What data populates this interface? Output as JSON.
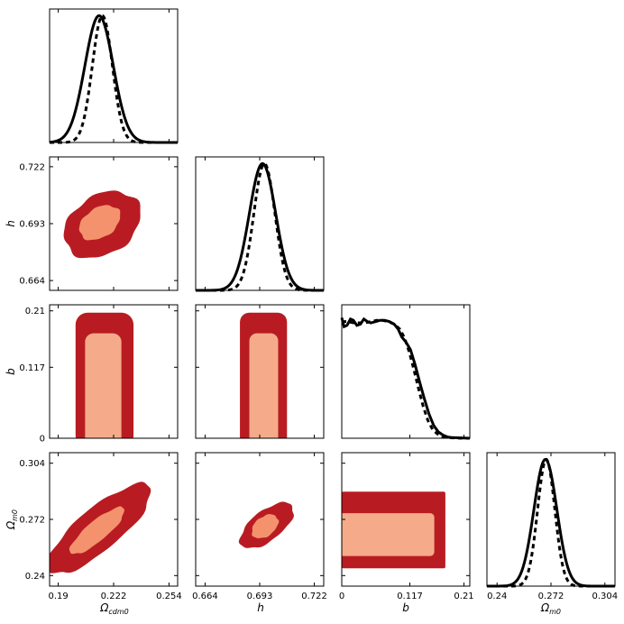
{
  "chart_data": {
    "type": "corner_plot",
    "parameters": [
      {
        "key": "Omega_cdm0",
        "label": "Ω",
        "sub": "cdm0",
        "range": [
          0.185,
          0.259
        ],
        "ticks": [
          "0.19",
          "0.222",
          "0.254"
        ],
        "tick_values": [
          0.19,
          0.222,
          0.254
        ]
      },
      {
        "key": "h",
        "label": "h",
        "sub": "",
        "range": [
          0.659,
          0.727
        ],
        "ticks": [
          "0.664",
          "0.693",
          "0.722"
        ],
        "tick_values": [
          0.664,
          0.693,
          0.722
        ]
      },
      {
        "key": "b",
        "label": "b",
        "sub": "",
        "range": [
          0.0,
          0.22
        ],
        "ticks": [
          "0",
          "0.117",
          "0.21"
        ],
        "tick_values": [
          0.0,
          0.117,
          0.21
        ]
      },
      {
        "key": "Omega_m0",
        "label": "Ω",
        "sub": "m0",
        "range": [
          0.234,
          0.31
        ],
        "ticks": [
          "0.24",
          "0.272",
          "0.304"
        ],
        "tick_values": [
          0.24,
          0.272,
          0.304
        ]
      }
    ],
    "colors": {
      "outer": "#b81c22",
      "inner_low": "#f5ab8a",
      "inner_high": "#f4926e",
      "line": "#000000"
    },
    "legend": "none",
    "grid": false,
    "marginals": [
      {
        "param": 0,
        "solid": {
          "type": "gauss",
          "mu": 0.2136,
          "sigma": 0.0082
        },
        "dashed": {
          "type": "gauss",
          "mu": 0.2155,
          "sigma": 0.0058
        }
      },
      {
        "param": 1,
        "solid": {
          "type": "gauss",
          "mu": 0.6945,
          "sigma": 0.007
        },
        "dashed": {
          "type": "gauss",
          "mu": 0.6955,
          "sigma": 0.0056
        }
      },
      {
        "param": 2,
        "solid": {
          "type": "points",
          "x": [
            0.0,
            0.004,
            0.009,
            0.015,
            0.02,
            0.026,
            0.032,
            0.038,
            0.044,
            0.05,
            0.058,
            0.066,
            0.074,
            0.082,
            0.09,
            0.097,
            0.103,
            0.11,
            0.118,
            0.126,
            0.134,
            0.142,
            0.15,
            0.158,
            0.166,
            0.174,
            0.182,
            0.19,
            0.2,
            0.21,
            0.22
          ],
          "y": [
            0.95,
            0.88,
            0.89,
            0.94,
            0.93,
            0.89,
            0.9,
            0.94,
            0.92,
            0.91,
            0.92,
            0.93,
            0.93,
            0.92,
            0.9,
            0.86,
            0.8,
            0.76,
            0.7,
            0.58,
            0.44,
            0.31,
            0.19,
            0.1,
            0.05,
            0.025,
            0.01,
            0.005,
            0.004,
            0.002,
            0.0
          ]
        },
        "dashed": {
          "type": "points",
          "x": [
            0.0,
            0.01,
            0.02,
            0.03,
            0.04,
            0.05,
            0.06,
            0.07,
            0.08,
            0.09,
            0.1,
            0.108,
            0.116,
            0.124,
            0.132,
            0.14,
            0.148,
            0.156,
            0.164,
            0.172,
            0.18,
            0.19,
            0.2,
            0.21,
            0.22
          ],
          "y": [
            0.92,
            0.92,
            0.91,
            0.91,
            0.91,
            0.92,
            0.93,
            0.93,
            0.92,
            0.9,
            0.86,
            0.79,
            0.68,
            0.54,
            0.39,
            0.25,
            0.14,
            0.07,
            0.035,
            0.015,
            0.007,
            0.003,
            0.001,
            0.0,
            0.0
          ]
        }
      },
      {
        "param": 3,
        "solid": {
          "type": "gauss",
          "mu": 0.2687,
          "sigma": 0.0068
        },
        "dashed": {
          "type": "gauss",
          "mu": 0.2692,
          "sigma": 0.0051
        }
      }
    ],
    "panels2d": [
      {
        "x": 0,
        "y": 1,
        "shape": "ellipse",
        "outer": {
          "cx": 0.2155,
          "cy": 0.6925,
          "rx": 0.024,
          "ry": 0.015,
          "angle": -33
        },
        "inner": {
          "cx": 0.214,
          "cy": 0.6935,
          "rx": 0.013,
          "ry": 0.0075,
          "angle": -33
        }
      },
      {
        "x": 0,
        "y": 2,
        "shape": "box",
        "outer": {
          "x0": 0.2,
          "x1": 0.2335,
          "y0": 0.0,
          "y1": 0.207,
          "r": 0.007
        },
        "inner": {
          "x0": 0.2055,
          "x1": 0.2265,
          "y0": 0.0,
          "y1": 0.173,
          "r": 0.005
        }
      },
      {
        "x": 0,
        "y": 3,
        "shape": "ellipse",
        "outer": {
          "cx": 0.2135,
          "cy": 0.2665,
          "rx": 0.038,
          "ry": 0.012,
          "angle": -40
        },
        "inner": {
          "cx": 0.2125,
          "cy": 0.2655,
          "rx": 0.02,
          "ry": 0.0057,
          "angle": -40
        }
      },
      {
        "x": 1,
        "y": 2,
        "shape": "box",
        "outer": {
          "x0": 0.6825,
          "x1": 0.7075,
          "y0": 0.0,
          "y1": 0.207,
          "r": 0.005
        },
        "inner": {
          "x0": 0.6875,
          "x1": 0.7028,
          "y0": 0.0,
          "y1": 0.173,
          "r": 0.004
        }
      },
      {
        "x": 1,
        "y": 3,
        "shape": "ellipse",
        "outer": {
          "cx": 0.6968,
          "cy": 0.2685,
          "rx": 0.017,
          "ry": 0.0085,
          "angle": -38
        },
        "inner": {
          "cx": 0.6958,
          "cy": 0.268,
          "rx": 0.008,
          "ry": 0.0055,
          "angle": -38
        }
      },
      {
        "x": 2,
        "y": 3,
        "shape": "box",
        "outer": {
          "x0": 0.0,
          "x1": 0.178,
          "y0": 0.2493,
          "y1": 0.2878,
          "r": 0.003
        },
        "inner": {
          "x0": 0.0,
          "x1": 0.159,
          "y0": 0.2563,
          "y1": 0.2755,
          "r": 0.007
        }
      }
    ]
  }
}
